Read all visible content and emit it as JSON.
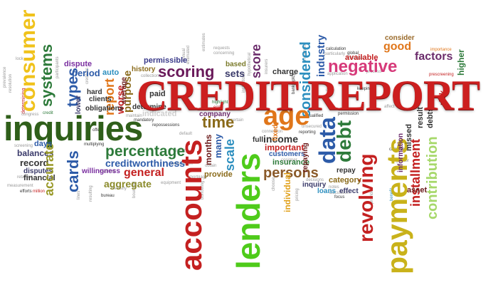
{
  "title": "CREDIT REPORT",
  "words": [
    {
      "text": "inquiries",
      "color": "#2f5f1a"
    },
    {
      "text": "consumer",
      "color": "#f0c21b"
    },
    {
      "text": "systems",
      "color": "#2d7a3a"
    },
    {
      "text": "types",
      "color": "#2d5ba8"
    },
    {
      "text": "dispute",
      "color": "#7a2fa0"
    },
    {
      "text": "period",
      "color": "#2d5ba8"
    },
    {
      "text": "auto",
      "color": "#2d8fbf"
    },
    {
      "text": "report",
      "color": "#e0761a"
    },
    {
      "text": "worse",
      "color": "#c42020"
    },
    {
      "text": "purpose",
      "color": "#8a6a1a"
    },
    {
      "text": "permissible",
      "color": "#3a3a8a"
    },
    {
      "text": "scoring",
      "color": "#6a1a5a"
    },
    {
      "text": "sets",
      "color": "#3a3a6a"
    },
    {
      "text": "based",
      "color": "#7a7a2a"
    },
    {
      "text": "score",
      "color": "#6a2a6a"
    },
    {
      "text": "charge",
      "color": "#333333"
    },
    {
      "text": "considered",
      "color": "#2d8fbf"
    },
    {
      "text": "industry",
      "color": "#2d5ba8"
    },
    {
      "text": "available",
      "color": "#c42020"
    },
    {
      "text": "negative",
      "color": "#d63a7a"
    },
    {
      "text": "good",
      "color": "#e0761a"
    },
    {
      "text": "consider",
      "color": "#9a6a2a"
    },
    {
      "text": "factors",
      "color": "#6a2a6a"
    },
    {
      "text": "higher",
      "color": "#2d7a3a"
    },
    {
      "text": "risk",
      "color": "#c42020"
    },
    {
      "text": "cards",
      "color": "#2d5ba8"
    },
    {
      "text": "percentage",
      "color": "#2d7a3a"
    },
    {
      "text": "creditworthiness",
      "color": "#2d5ba8"
    },
    {
      "text": "general",
      "color": "#c42020"
    },
    {
      "text": "aggregate",
      "color": "#8a8a2a"
    },
    {
      "text": "balances",
      "color": "#3a3a6a"
    },
    {
      "text": "record",
      "color": "#333333"
    },
    {
      "text": "disputes",
      "color": "#3a3a6a"
    },
    {
      "text": "financial",
      "color": "#333333"
    },
    {
      "text": "willingness",
      "color": "#7a2fa0"
    },
    {
      "text": "accounts",
      "color": "#c42020"
    },
    {
      "text": "time",
      "color": "#8a6a1a"
    },
    {
      "text": "months",
      "color": "#6a1a1a"
    },
    {
      "text": "many",
      "color": "#2d5ba8"
    },
    {
      "text": "scale",
      "color": "#2d8fbf"
    },
    {
      "text": "lenders",
      "color": "#4ecb1a"
    },
    {
      "text": "age",
      "color": "#e0761a"
    },
    {
      "text": "full",
      "color": "#333333"
    },
    {
      "text": "income",
      "color": "#333333"
    },
    {
      "text": "persons",
      "color": "#8a5a2a"
    },
    {
      "text": "important",
      "color": "#c42020"
    },
    {
      "text": "customers",
      "color": "#2d5ba8"
    },
    {
      "text": "insurance",
      "color": "#2d7a3a"
    },
    {
      "text": "data",
      "color": "#2d5ba8"
    },
    {
      "text": "debt",
      "color": "#2d7a3a"
    },
    {
      "text": "revolving",
      "color": "#c42020"
    },
    {
      "text": "repay",
      "color": "#333333"
    },
    {
      "text": "inquiry",
      "color": "#3a3a6a"
    },
    {
      "text": "category",
      "color": "#8a6a1a"
    },
    {
      "text": "loans",
      "color": "#2d8fbf"
    },
    {
      "text": "effect",
      "color": "#3a3a6a"
    },
    {
      "text": "payments",
      "color": "#c9b21a"
    },
    {
      "text": "installment",
      "color": "#c42020"
    },
    {
      "text": "missed",
      "color": "#333333"
    },
    {
      "text": "information",
      "color": "#6a2a6a"
    },
    {
      "text": "contribution",
      "color": "#a6d86a"
    },
    {
      "text": "asset",
      "color": "#6a1a1a"
    },
    {
      "text": "provide",
      "color": "#8a6a1a"
    },
    {
      "text": "company",
      "color": "#6a2a6a"
    },
    {
      "text": "individual",
      "color": "#e0a01a"
    },
    {
      "text": "clients",
      "color": "#333333"
    },
    {
      "text": "obligations",
      "color": "#333333"
    },
    {
      "text": "lower",
      "color": "#3a3a6a"
    },
    {
      "text": "hard",
      "color": "#333333"
    },
    {
      "text": "history",
      "color": "#8a6a1a"
    },
    {
      "text": "paid",
      "color": "#333333"
    },
    {
      "text": "determine",
      "color": "#333333"
    },
    {
      "text": "accurate",
      "color": "#9a9a2a"
    },
    {
      "text": "days",
      "color": "#2d5ba8"
    },
    {
      "text": "fixed",
      "color": "#e0761a"
    },
    {
      "text": "repaying",
      "color": "#6a1a1a"
    },
    {
      "text": "indicated",
      "color": "#d0d0d0"
    },
    {
      "text": "average",
      "color": "#6a1a1a"
    },
    {
      "text": "debts",
      "color": "#333333"
    },
    {
      "text": "result",
      "color": "#333333"
    }
  ],
  "tiny_words": [
    "lock",
    "prevalence",
    "resolution",
    "determining",
    "congress",
    "credit",
    "participants",
    "institutions",
    "connection",
    "hypothetical",
    "repossessions",
    "maintain",
    "collections",
    "creditors",
    "estimates",
    "calculation",
    "particularly",
    "global",
    "increase",
    "application",
    "importance",
    "prescreening",
    "process",
    "keeping",
    "date",
    "permission",
    "affect",
    "discussion",
    "mortgage",
    "equipment",
    "obtain",
    "highlight",
    "error",
    "cosigner",
    "reporting",
    "unsecured",
    "notes",
    "bureau",
    "focus",
    "lines",
    "resulting",
    "requests",
    "concerning",
    "multiplying",
    "screening",
    "measurement",
    "efforts",
    "million",
    "retained",
    "annual",
    "estimated",
    "choose",
    "pricing",
    "benefit",
    "calculated",
    "grantor",
    "diversity",
    "bankruptcy",
    "borrowing",
    "bounded",
    "ascertain",
    "default",
    "offers",
    "mandatory",
    "variety",
    "explanation",
    "decisions",
    "provided",
    "involved",
    "qualified",
    "minimum",
    "insurers"
  ]
}
